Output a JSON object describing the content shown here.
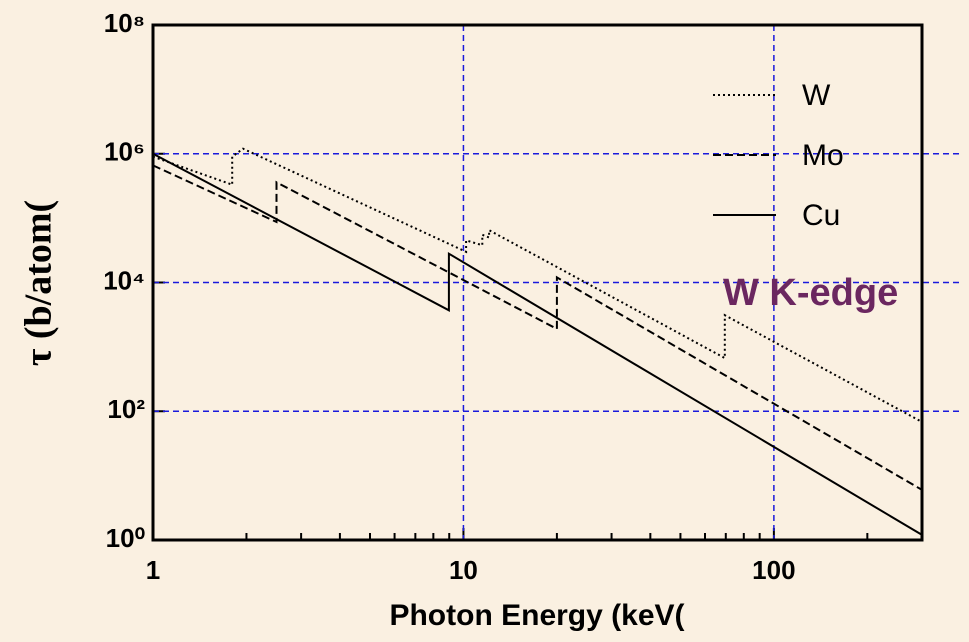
{
  "chart_data": {
    "type": "line",
    "xlabel": "Photon Energy (keV(",
    "ylabel": "τ (b/atom(",
    "log_x": true,
    "log_y": true,
    "grid": true,
    "xlim": [
      1,
      300
    ],
    "ylim": [
      1,
      100000000
    ],
    "xticks": [
      1,
      10,
      100
    ],
    "xminorticks": [
      2,
      3,
      4,
      5,
      6,
      7,
      8,
      9,
      20,
      30,
      40,
      50,
      60,
      70,
      80,
      90,
      200
    ],
    "yticks": [
      {
        "value": 1,
        "label": "10⁰"
      },
      {
        "value": 100,
        "label": "10²"
      },
      {
        "value": 10000,
        "label": "10⁴"
      },
      {
        "value": 1000000,
        "label": "10⁶"
      },
      {
        "value": 100000000,
        "label": "10⁸"
      }
    ],
    "legend_position": "upper right",
    "annotations": [
      {
        "text": "W K-edge",
        "color": "#6b2760"
      }
    ],
    "series": [
      {
        "name": "W",
        "color": "#000000",
        "dash": "dotted",
        "x": [
          1,
          1.8,
          1.8,
          1.95,
          10.2,
          10.2,
          11.5,
          11.5,
          12.1,
          12.1,
          69.5,
          69.5,
          300
        ],
        "values": [
          900000,
          330000,
          900000,
          1200000,
          30000,
          45000,
          38000,
          55000,
          50000,
          65000,
          670,
          3100,
          68
        ]
      },
      {
        "name": "Mo",
        "color": "#000000",
        "dash": "dashed",
        "x": [
          1,
          2.5,
          2.5,
          20,
          20,
          300
        ],
        "values": [
          660000,
          87000,
          360000,
          1900,
          12000,
          6
        ]
      },
      {
        "name": "Cu",
        "color": "#000000",
        "dash": "solid",
        "x": [
          1,
          8.98,
          8.98,
          300
        ],
        "values": [
          1000000,
          3700,
          28000,
          1.2
        ]
      }
    ]
  }
}
